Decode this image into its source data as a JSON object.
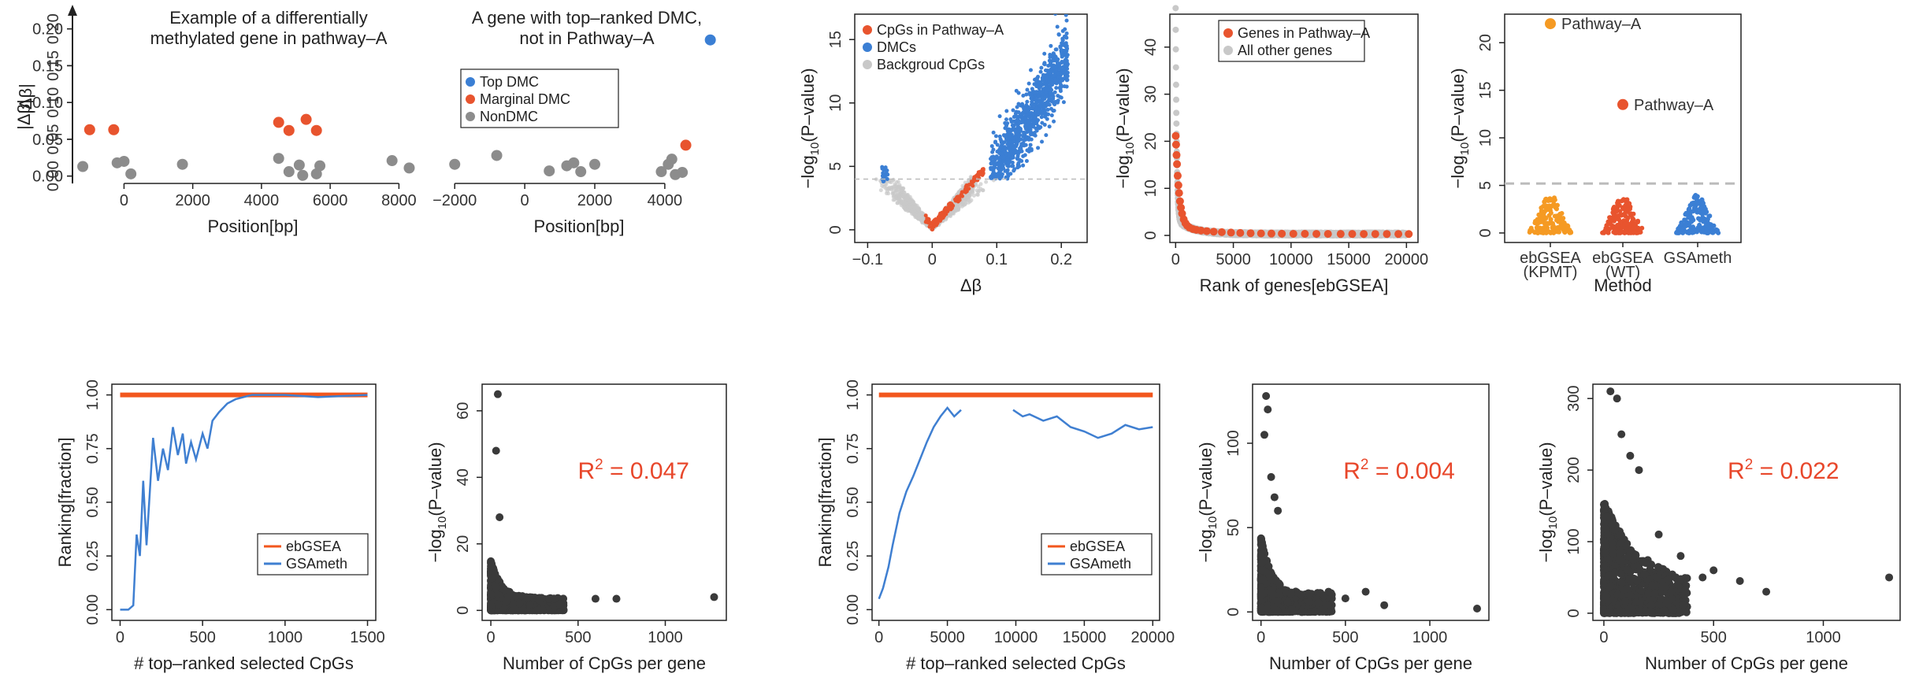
{
  "colors": {
    "orange_red": "#e8542e",
    "blue": "#3b7fd4",
    "gray": "#8c8c8c",
    "light_gray": "#c8c8c8",
    "dark": "#3a3a3a",
    "ebgsea_line": "#f2561d",
    "gsameth_line": "#3f7fd1",
    "kpmt_orange": "#f59a23",
    "r2_red": "#e8472b"
  },
  "chart_data": [
    {
      "id": "p1",
      "type": "scatter",
      "title": [
        "Example of a differentially",
        "methylated gene in pathway–A"
      ],
      "xlabel": "Position[bp]",
      "ylabel": "|Δβ|",
      "xlim": [
        -1500,
        9000
      ],
      "ylim": [
        -0.01,
        0.22
      ],
      "xticks": [
        "0",
        "2000",
        "4000",
        "6000",
        "8000"
      ],
      "xtick_values": [
        0,
        2000,
        4000,
        6000,
        8000
      ],
      "yticks": [
        "0.00",
        "0.05",
        "0.10",
        "0.15",
        "0.20"
      ],
      "ytick_values": [
        0,
        0.05,
        0.1,
        0.15,
        0.2
      ],
      "series": [
        {
          "name": "Marginal DMC",
          "color": "#e8542e",
          "points": [
            [
              -1000,
              0.063
            ],
            [
              -300,
              0.063
            ],
            [
              4500,
              0.073
            ],
            [
              4800,
              0.062
            ],
            [
              5300,
              0.077
            ],
            [
              5600,
              0.062
            ]
          ]
        },
        {
          "name": "NonDMC",
          "color": "#8c8c8c",
          "points": [
            [
              -1200,
              0.013
            ],
            [
              -200,
              0.018
            ],
            [
              0,
              0.02
            ],
            [
              200,
              0.003
            ],
            [
              1700,
              0.016
            ],
            [
              4500,
              0.024
            ],
            [
              4800,
              0.006
            ],
            [
              5100,
              0.015
            ],
            [
              5200,
              0.001
            ],
            [
              5700,
              0.014
            ],
            [
              5600,
              0.003
            ],
            [
              7800,
              0.021
            ],
            [
              8300,
              0.011
            ]
          ]
        }
      ]
    },
    {
      "id": "p2",
      "type": "scatter",
      "title": [
        "A gene with top–ranked DMC,",
        "not in Pathway–A"
      ],
      "xlabel": "Position[bp]",
      "xlim": [
        -2500,
        5600
      ],
      "ylim": [
        -0.01,
        0.22
      ],
      "xticks": [
        "−2000",
        "0",
        "2000",
        "4000"
      ],
      "xtick_values": [
        -2000,
        0,
        2000,
        4000
      ],
      "legend": [
        "Top DMC",
        "Marginal DMC",
        "NonDMC"
      ],
      "legend_colors": [
        "#3b7fd4",
        "#e8542e",
        "#8c8c8c"
      ],
      "series": [
        {
          "name": "Top DMC",
          "color": "#3b7fd4",
          "points": [
            [
              5300,
              0.185
            ]
          ]
        },
        {
          "name": "Marginal DMC",
          "color": "#e8542e",
          "points": [
            [
              4600,
              0.042
            ]
          ]
        },
        {
          "name": "NonDMC",
          "color": "#8c8c8c",
          "points": [
            [
              -2000,
              0.016
            ],
            [
              -800,
              0.028
            ],
            [
              700,
              0.007
            ],
            [
              1200,
              0.014
            ],
            [
              1400,
              0.018
            ],
            [
              1600,
              0.006
            ],
            [
              2000,
              0.016
            ],
            [
              3900,
              0.006
            ],
            [
              4100,
              0.016
            ],
            [
              4200,
              0.023
            ],
            [
              4300,
              0.002
            ],
            [
              4500,
              0.005
            ]
          ]
        }
      ]
    },
    {
      "id": "p3",
      "type": "scatter",
      "title": "",
      "xlabel": "Δβ",
      "ylabel": "−log10(P–value)",
      "xlim": [
        -0.12,
        0.24
      ],
      "ylim": [
        -1,
        17
      ],
      "xticks": [
        "−0.1",
        "0",
        "0.1",
        "0.2"
      ],
      "xtick_values": [
        -0.1,
        0,
        0.1,
        0.2
      ],
      "yticks": [
        "0",
        "5",
        "10",
        "15"
      ],
      "ytick_values": [
        0,
        5,
        10,
        15
      ],
      "threshold_y": 4,
      "legend": [
        "CpGs in Pathway–A",
        "DMCs",
        "Backgroud CpGs"
      ],
      "legend_colors": [
        "#e8542e",
        "#3b7fd4",
        "#c8c8c8"
      ]
    },
    {
      "id": "p4",
      "type": "scatter",
      "title": "",
      "xlabel": "Rank of genes[ebGSEA]",
      "ylabel": "−log10(P–value)",
      "xlim": [
        -500,
        21000
      ],
      "ylim": [
        -1.5,
        47
      ],
      "xticks": [
        "0",
        "5000",
        "10000",
        "15000",
        "20000"
      ],
      "xtick_values": [
        0,
        5000,
        10000,
        15000,
        20000
      ],
      "yticks": [
        "0",
        "10",
        "20",
        "30",
        "40"
      ],
      "ytick_values": [
        0,
        10,
        20,
        30,
        40
      ],
      "legend": [
        "Genes in Pathway–A",
        "All other genes"
      ],
      "legend_colors": [
        "#e8542e",
        "#c8c8c8"
      ]
    },
    {
      "id": "p5",
      "type": "scatter",
      "title": "",
      "xlabel": "Method",
      "ylabel": "−log10(P–value)",
      "ylim": [
        -1,
        23
      ],
      "yticks": [
        "0",
        "5",
        "10",
        "15",
        "20"
      ],
      "ytick_values": [
        0,
        5,
        10,
        15,
        20
      ],
      "threshold_y": 5.2,
      "categories": [
        [
          "ebGSEA",
          "(KPMT)"
        ],
        [
          "ebGSEA",
          "(WT)"
        ],
        [
          "GSAmeth",
          ""
        ]
      ],
      "category_colors": [
        "#f59a23",
        "#e8542e",
        "#3b7fd4"
      ],
      "highlight_points": [
        {
          "category": 0,
          "value": 22,
          "label": "Pathway–A",
          "color": "#f59a23"
        },
        {
          "category": 1,
          "value": 13.5,
          "label": "Pathway–A",
          "color": "#e8542e"
        }
      ]
    },
    {
      "id": "p6",
      "type": "line",
      "title": "",
      "xlabel": "# top–ranked selected CpGs",
      "ylabel": "Ranking[fraction]",
      "xlim": [
        -50,
        1550
      ],
      "ylim": [
        -0.05,
        1.05
      ],
      "xticks": [
        "0",
        "500",
        "1000",
        "1500"
      ],
      "xtick_values": [
        0,
        500,
        1000,
        1500
      ],
      "yticks": [
        "0.00",
        "0.25",
        "0.50",
        "0.75",
        "1.00"
      ],
      "ytick_values": [
        0,
        0.25,
        0.5,
        0.75,
        1
      ],
      "legend": [
        "ebGSEA",
        "GSAmeth"
      ],
      "legend_colors": [
        "#f2561d",
        "#3f7fd1"
      ],
      "series": [
        {
          "name": "ebGSEA",
          "color": "#f2561d",
          "points": [
            [
              0,
              1.0
            ],
            [
              1500,
              1.0
            ]
          ]
        },
        {
          "name": "GSAmeth",
          "color": "#3f7fd1",
          "points": [
            [
              0,
              0.0
            ],
            [
              50,
              0.0
            ],
            [
              80,
              0.02
            ],
            [
              100,
              0.35
            ],
            [
              120,
              0.25
            ],
            [
              140,
              0.6
            ],
            [
              160,
              0.3
            ],
            [
              180,
              0.55
            ],
            [
              200,
              0.8
            ],
            [
              230,
              0.6
            ],
            [
              260,
              0.75
            ],
            [
              290,
              0.65
            ],
            [
              320,
              0.85
            ],
            [
              350,
              0.72
            ],
            [
              380,
              0.82
            ],
            [
              400,
              0.68
            ],
            [
              430,
              0.78
            ],
            [
              460,
              0.7
            ],
            [
              500,
              0.82
            ],
            [
              530,
              0.75
            ],
            [
              560,
              0.88
            ],
            [
              600,
              0.92
            ],
            [
              650,
              0.96
            ],
            [
              700,
              0.98
            ],
            [
              800,
              1.0
            ],
            [
              1000,
              1.0
            ],
            [
              1200,
              0.99
            ],
            [
              1500,
              1.0
            ]
          ]
        }
      ]
    },
    {
      "id": "p7",
      "type": "scatter",
      "title": "",
      "xlabel": "Number of CpGs per gene",
      "ylabel": "−log10(P–value)",
      "xlim": [
        -50,
        1350
      ],
      "ylim": [
        -3,
        68
      ],
      "xticks": [
        "0",
        "500",
        "1000"
      ],
      "xtick_values": [
        0,
        500,
        1000
      ],
      "yticks": [
        "0",
        "20",
        "40",
        "60"
      ],
      "ytick_values": [
        0,
        20,
        40,
        60
      ],
      "annotation": "R² = 0.047",
      "max_y": 15,
      "outliers": [
        [
          40,
          65
        ],
        [
          30,
          48
        ],
        [
          50,
          28
        ],
        [
          600,
          3.5
        ],
        [
          720,
          3.5
        ],
        [
          1280,
          4
        ]
      ]
    },
    {
      "id": "p8",
      "type": "line",
      "title": "",
      "xlabel": "# top–ranked selected CpGs",
      "ylabel": "Ranking[fraction]",
      "xlim": [
        -500,
        20500
      ],
      "ylim": [
        -0.05,
        1.05
      ],
      "xticks": [
        "0",
        "5000",
        "10000",
        "15000",
        "20000"
      ],
      "xtick_values": [
        0,
        5000,
        10000,
        15000,
        20000
      ],
      "yticks": [
        "0.00",
        "0.25",
        "0.50",
        "0.75",
        "1.00"
      ],
      "ytick_values": [
        0,
        0.25,
        0.5,
        0.75,
        1
      ],
      "legend": [
        "ebGSEA",
        "GSAmeth"
      ],
      "legend_colors": [
        "#f2561d",
        "#3f7fd1"
      ],
      "series": [
        {
          "name": "ebGSEA",
          "color": "#f2561d",
          "points": [
            [
              0,
              1.0
            ],
            [
              20000,
              1.0
            ]
          ]
        },
        {
          "name": "GSAmeth",
          "color": "#3f7fd1",
          "points": [
            [
              0,
              0.05
            ],
            [
              300,
              0.1
            ],
            [
              700,
              0.2
            ],
            [
              1000,
              0.3
            ],
            [
              1500,
              0.45
            ],
            [
              2000,
              0.55
            ],
            [
              2500,
              0.62
            ],
            [
              3000,
              0.7
            ],
            [
              3500,
              0.78
            ],
            [
              4000,
              0.85
            ],
            [
              4500,
              0.9
            ],
            [
              5000,
              0.94
            ],
            [
              5500,
              0.9
            ],
            [
              6000,
              0.93
            ]
          ]
        },
        {
          "name": "GSAmeth",
          "color": "#3f7fd1",
          "points": [
            [
              9800,
              0.93
            ],
            [
              10500,
              0.9
            ],
            [
              11000,
              0.91
            ],
            [
              12000,
              0.88
            ],
            [
              13000,
              0.9
            ],
            [
              14000,
              0.85
            ],
            [
              15000,
              0.83
            ],
            [
              16000,
              0.8
            ],
            [
              17000,
              0.82
            ],
            [
              18000,
              0.86
            ],
            [
              19000,
              0.84
            ],
            [
              20000,
              0.85
            ]
          ]
        }
      ]
    },
    {
      "id": "p9",
      "type": "scatter",
      "title": "",
      "xlabel": "Number of CpGs per gene",
      "ylabel": "−log10(P–value)",
      "xlim": [
        -50,
        1350
      ],
      "ylim": [
        -5,
        135
      ],
      "xticks": [
        "0",
        "500",
        "1000"
      ],
      "xtick_values": [
        0,
        500,
        1000
      ],
      "yticks": [
        "0",
        "50",
        "100"
      ],
      "ytick_values": [
        0,
        50,
        100
      ],
      "annotation": "R² = 0.004",
      "max_y": 45,
      "outliers": [
        [
          30,
          128
        ],
        [
          40,
          120
        ],
        [
          20,
          105
        ],
        [
          60,
          80
        ],
        [
          80,
          68
        ],
        [
          100,
          60
        ],
        [
          400,
          12
        ],
        [
          500,
          8
        ],
        [
          620,
          12
        ],
        [
          730,
          4
        ],
        [
          1280,
          2
        ]
      ]
    },
    {
      "id": "p10",
      "type": "scatter",
      "title": "",
      "xlabel": "Number of CpGs per gene",
      "ylabel": "−log10(P–value)",
      "xlim": [
        -50,
        1350
      ],
      "ylim": [
        -10,
        320
      ],
      "xticks": [
        "0",
        "500",
        "1000"
      ],
      "xtick_values": [
        0,
        500,
        1000
      ],
      "yticks": [
        "0",
        "100",
        "200",
        "300"
      ],
      "ytick_values": [
        0,
        100,
        200,
        300
      ],
      "annotation": "R² = 0.022",
      "max_y": 160,
      "outliers": [
        [
          30,
          310
        ],
        [
          60,
          300
        ],
        [
          80,
          250
        ],
        [
          120,
          220
        ],
        [
          160,
          200
        ],
        [
          250,
          110
        ],
        [
          350,
          80
        ],
        [
          450,
          50
        ],
        [
          500,
          60
        ],
        [
          620,
          45
        ],
        [
          740,
          30
        ],
        [
          1300,
          50
        ]
      ]
    }
  ]
}
